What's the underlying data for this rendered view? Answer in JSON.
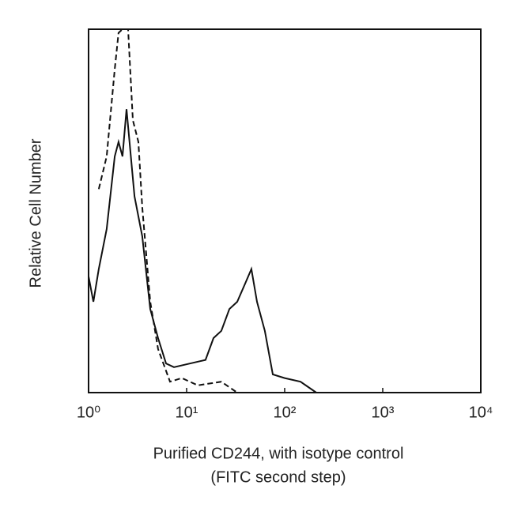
{
  "chart_data": {
    "type": "line",
    "ylabel": "Relative Cell Number",
    "xlabel": [
      "Purified CD244, with isotype control",
      "(FITC second step)"
    ],
    "xscale": "log",
    "xlim": [
      1,
      10000
    ],
    "xticks": [
      {
        "value": 1,
        "label": "10⁰"
      },
      {
        "value": 10,
        "label": "10¹"
      },
      {
        "value": 100,
        "label": "10²"
      },
      {
        "value": 1000,
        "label": "10³"
      },
      {
        "value": 10000,
        "label": "10⁴"
      }
    ],
    "ylim": [
      0,
      100
    ],
    "series": [
      {
        "color": "#111111",
        "dashed": false,
        "x": [
          1.0,
          1.12,
          1.27,
          1.53,
          1.85,
          2.02,
          2.22,
          2.44,
          2.94,
          3.53,
          4.26,
          5.12,
          6.17,
          7.43,
          10.8,
          15.6,
          18.8,
          22.6,
          27.3,
          32.8,
          39.5,
          45.8,
          52.2,
          62.8,
          75.7,
          100,
          145,
          210
        ],
        "values": [
          32,
          25,
          34,
          45,
          65,
          69,
          65,
          78,
          54,
          43,
          23,
          15,
          8,
          7,
          8,
          9,
          15,
          17,
          23,
          25,
          30,
          34,
          25,
          17,
          5,
          4,
          3,
          0
        ]
      },
      {
        "color": "#111111",
        "dashed": true,
        "x": [
          1.27,
          1.53,
          1.85,
          2.02,
          2.22,
          2.53,
          2.83,
          3.22,
          3.53,
          4.26,
          5.12,
          6.77,
          8.95,
          13.0,
          22.6,
          32.8
        ],
        "values": [
          56,
          65,
          89,
          99,
          100,
          100,
          75,
          69,
          51,
          25,
          12,
          3,
          4,
          2,
          3,
          0
        ]
      }
    ]
  }
}
